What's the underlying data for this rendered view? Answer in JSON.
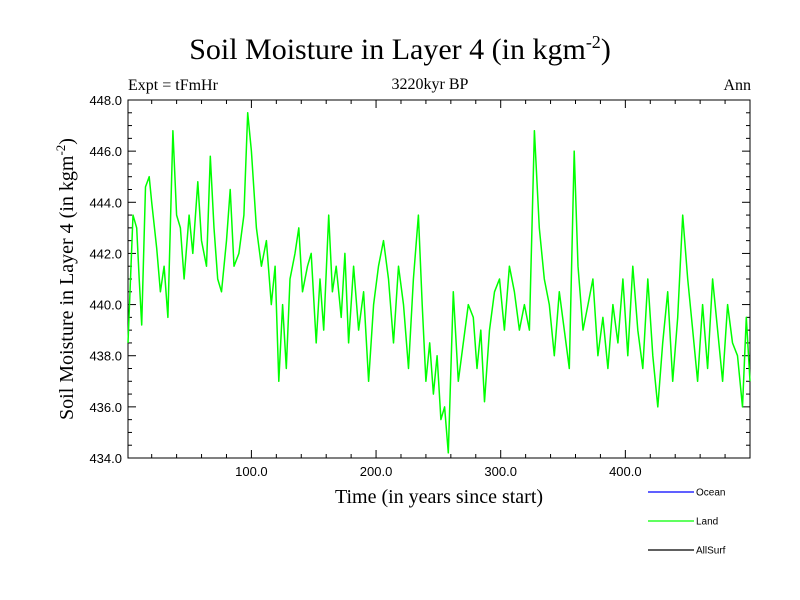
{
  "chart_data": {
    "type": "line",
    "title": "Soil Moisture in Layer 4 (in kgm",
    "title_superscript": "-2",
    "title_close": ")",
    "subtitle": "3220kyr BP",
    "left_label": "Expt = tFmHr",
    "right_label": "Ann",
    "xlabel": "Time (in years since start)",
    "ylabel": "Soil Moisture in Layer 4 (in kgm",
    "ylabel_superscript": "-2",
    "ylabel_close": ")",
    "xlim": [
      1,
      500
    ],
    "ylim": [
      434,
      448
    ],
    "x_ticks": [
      100,
      200,
      300,
      400
    ],
    "x_tick_labels": [
      "100.0",
      "200.0",
      "300.0",
      "400.0"
    ],
    "y_ticks": [
      434,
      436,
      438,
      440,
      442,
      444,
      446,
      448
    ],
    "y_tick_labels": [
      "434.0",
      "436.0",
      "438.0",
      "440.0",
      "442.0",
      "444.0",
      "446.0",
      "448.0"
    ],
    "series": [
      {
        "name": "Ocean",
        "color": "#0000ff",
        "values": []
      },
      {
        "name": "Land",
        "color": "#00ff00",
        "values": [
          [
            1,
            438.5
          ],
          [
            5,
            443.5
          ],
          [
            8,
            443.0
          ],
          [
            10,
            441.0
          ],
          [
            12,
            439.2
          ],
          [
            15,
            444.6
          ],
          [
            18,
            445.0
          ],
          [
            20,
            444.0
          ],
          [
            24,
            442.2
          ],
          [
            27,
            440.5
          ],
          [
            30,
            441.5
          ],
          [
            33,
            439.5
          ],
          [
            37,
            446.8
          ],
          [
            40,
            443.5
          ],
          [
            43,
            443.0
          ],
          [
            46,
            441.0
          ],
          [
            50,
            443.5
          ],
          [
            53,
            442.0
          ],
          [
            57,
            444.8
          ],
          [
            60,
            442.5
          ],
          [
            64,
            441.5
          ],
          [
            67,
            445.8
          ],
          [
            70,
            443.0
          ],
          [
            73,
            441.0
          ],
          [
            76,
            440.5
          ],
          [
            80,
            442.5
          ],
          [
            83,
            444.5
          ],
          [
            86,
            441.5
          ],
          [
            90,
            442.0
          ],
          [
            94,
            443.5
          ],
          [
            97,
            447.5
          ],
          [
            100,
            446.0
          ],
          [
            104,
            443.0
          ],
          [
            108,
            441.5
          ],
          [
            112,
            442.5
          ],
          [
            116,
            440.0
          ],
          [
            119,
            441.5
          ],
          [
            122,
            437.0
          ],
          [
            125,
            440.0
          ],
          [
            128,
            437.5
          ],
          [
            131,
            441.0
          ],
          [
            135,
            442.0
          ],
          [
            138,
            443.0
          ],
          [
            141,
            440.5
          ],
          [
            145,
            441.5
          ],
          [
            148,
            442.0
          ],
          [
            152,
            438.5
          ],
          [
            155,
            441.0
          ],
          [
            158,
            439.0
          ],
          [
            162,
            443.5
          ],
          [
            165,
            440.5
          ],
          [
            168,
            441.5
          ],
          [
            172,
            439.5
          ],
          [
            175,
            442.0
          ],
          [
            178,
            438.5
          ],
          [
            182,
            441.5
          ],
          [
            186,
            439.0
          ],
          [
            190,
            440.5
          ],
          [
            194,
            437.0
          ],
          [
            198,
            440.0
          ],
          [
            202,
            441.5
          ],
          [
            206,
            442.5
          ],
          [
            210,
            441.0
          ],
          [
            214,
            438.5
          ],
          [
            218,
            441.5
          ],
          [
            222,
            440.0
          ],
          [
            226,
            437.5
          ],
          [
            230,
            441.0
          ],
          [
            234,
            443.5
          ],
          [
            237,
            440.0
          ],
          [
            240,
            437.0
          ],
          [
            243,
            438.5
          ],
          [
            246,
            436.5
          ],
          [
            249,
            438.0
          ],
          [
            252,
            435.5
          ],
          [
            255,
            436.0
          ],
          [
            258,
            434.2
          ],
          [
            262,
            440.5
          ],
          [
            266,
            437.0
          ],
          [
            270,
            438.5
          ],
          [
            274,
            440.0
          ],
          [
            278,
            439.5
          ],
          [
            281,
            437.5
          ],
          [
            284,
            439.0
          ],
          [
            287,
            436.2
          ],
          [
            291,
            439.0
          ],
          [
            295,
            440.5
          ],
          [
            299,
            441.0
          ],
          [
            303,
            439.0
          ],
          [
            307,
            441.5
          ],
          [
            311,
            440.5
          ],
          [
            315,
            439.0
          ],
          [
            319,
            440.0
          ],
          [
            323,
            439.0
          ],
          [
            327,
            446.8
          ],
          [
            331,
            443.0
          ],
          [
            335,
            441.0
          ],
          [
            339,
            440.0
          ],
          [
            343,
            438.0
          ],
          [
            347,
            440.5
          ],
          [
            351,
            439.0
          ],
          [
            355,
            437.5
          ],
          [
            359,
            446.0
          ],
          [
            362,
            441.5
          ],
          [
            366,
            439.0
          ],
          [
            370,
            440.0
          ],
          [
            374,
            441.0
          ],
          [
            378,
            438.0
          ],
          [
            382,
            439.5
          ],
          [
            386,
            437.5
          ],
          [
            390,
            440.0
          ],
          [
            394,
            438.5
          ],
          [
            398,
            441.0
          ],
          [
            402,
            438.0
          ],
          [
            406,
            441.5
          ],
          [
            410,
            439.0
          ],
          [
            414,
            437.5
          ],
          [
            418,
            441.0
          ],
          [
            422,
            438.0
          ],
          [
            426,
            436.0
          ],
          [
            430,
            438.5
          ],
          [
            434,
            440.5
          ],
          [
            438,
            437.0
          ],
          [
            442,
            439.5
          ],
          [
            446,
            443.5
          ],
          [
            450,
            441.0
          ],
          [
            454,
            439.0
          ],
          [
            458,
            437.0
          ],
          [
            462,
            440.0
          ],
          [
            466,
            437.5
          ],
          [
            470,
            441.0
          ],
          [
            474,
            439.0
          ],
          [
            478,
            437.0
          ],
          [
            482,
            440.0
          ],
          [
            486,
            438.5
          ],
          [
            490,
            438.0
          ],
          [
            494,
            436.0
          ],
          [
            497,
            439.5
          ],
          [
            500,
            437.0
          ]
        ]
      },
      {
        "name": "AllSurf",
        "color": "#000000",
        "values": []
      }
    ]
  }
}
